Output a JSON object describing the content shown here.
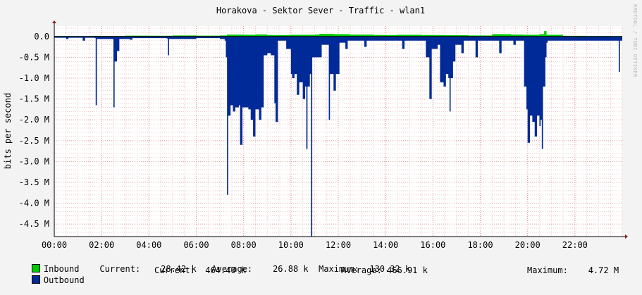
{
  "chart_data": {
    "type": "area",
    "title": "Horakova - Sektor Sever - Traffic - wlan1",
    "ylabel": "bits per second",
    "watermark": "RRDTOOL / TOBI OETIKER",
    "ylim": [
      -4800000,
      250000
    ],
    "y_ticks": [
      0,
      -500000,
      -1000000,
      -1500000,
      -2000000,
      -2500000,
      -3000000,
      -3500000,
      -4000000,
      -4500000
    ],
    "y_tick_labels": [
      "0.0",
      "-0.5 M",
      "-1.0 M",
      "-1.5 M",
      "-2.0 M",
      "-2.5 M",
      "-3.0 M",
      "-3.5 M",
      "-4.0 M",
      "-4.5 M"
    ],
    "xlim": [
      "00:00",
      "24:00"
    ],
    "x_ticks": [
      "00:00",
      "02:00",
      "04:00",
      "06:00",
      "08:00",
      "10:00",
      "12:00",
      "14:00",
      "16:00",
      "18:00",
      "20:00",
      "22:00"
    ],
    "grid": true,
    "series": [
      {
        "name": "Inbound",
        "color": "#00cc00",
        "values": [
          [
            0.0,
            10000
          ],
          [
            0.8,
            8000
          ],
          [
            1.5,
            15000
          ],
          [
            2.0,
            12000
          ],
          [
            3.0,
            20000
          ],
          [
            4.0,
            18000
          ],
          [
            5.0,
            25000
          ],
          [
            6.0,
            20000
          ],
          [
            7.0,
            25000
          ],
          [
            7.3,
            45000
          ],
          [
            8.0,
            40000
          ],
          [
            8.5,
            50000
          ],
          [
            9.0,
            35000
          ],
          [
            10.0,
            40000
          ],
          [
            11.0,
            45000
          ],
          [
            11.2,
            65000
          ],
          [
            11.8,
            55000
          ],
          [
            12.5,
            45000
          ],
          [
            13.5,
            35000
          ],
          [
            14.5,
            40000
          ],
          [
            15.5,
            35000
          ],
          [
            16.5,
            30000
          ],
          [
            17.5,
            25000
          ],
          [
            18.5,
            55000
          ],
          [
            19.3,
            45000
          ],
          [
            19.8,
            40000
          ],
          [
            20.5,
            55000
          ],
          [
            20.7,
            130000
          ],
          [
            20.8,
            40000
          ],
          [
            21.5,
            15000
          ],
          [
            22.5,
            10000
          ],
          [
            23.5,
            8000
          ],
          [
            24.0,
            8000
          ]
        ]
      },
      {
        "name": "Outbound",
        "color": "#002a97",
        "values": [
          [
            0.0,
            -30000
          ],
          [
            0.45,
            -30000
          ],
          [
            0.5,
            -60000
          ],
          [
            0.6,
            -30000
          ],
          [
            1.1,
            -30000
          ],
          [
            1.2,
            -100000
          ],
          [
            1.3,
            -30000
          ],
          [
            1.7,
            -40000
          ],
          [
            1.75,
            -1650000
          ],
          [
            1.8,
            -60000
          ],
          [
            2.4,
            -60000
          ],
          [
            2.5,
            -1700000
          ],
          [
            2.55,
            -600000
          ],
          [
            2.65,
            -350000
          ],
          [
            2.75,
            -60000
          ],
          [
            3.0,
            -60000
          ],
          [
            3.2,
            -80000
          ],
          [
            3.3,
            -40000
          ],
          [
            4.75,
            -50000
          ],
          [
            4.8,
            -450000
          ],
          [
            4.85,
            -60000
          ],
          [
            6.0,
            -40000
          ],
          [
            7.0,
            -60000
          ],
          [
            7.2,
            -100000
          ],
          [
            7.25,
            -500000
          ],
          [
            7.3,
            -3800000
          ],
          [
            7.35,
            -1900000
          ],
          [
            7.45,
            -1650000
          ],
          [
            7.55,
            -1800000
          ],
          [
            7.65,
            -1700000
          ],
          [
            7.8,
            -1650000
          ],
          [
            7.85,
            -2600000
          ],
          [
            7.95,
            -1700000
          ],
          [
            8.2,
            -1750000
          ],
          [
            8.3,
            -2000000
          ],
          [
            8.4,
            -2400000
          ],
          [
            8.5,
            -1750000
          ],
          [
            8.65,
            -2000000
          ],
          [
            8.75,
            -1700000
          ],
          [
            8.85,
            -450000
          ],
          [
            9.0,
            -400000
          ],
          [
            9.15,
            -450000
          ],
          [
            9.3,
            -1600000
          ],
          [
            9.35,
            -2050000
          ],
          [
            9.45,
            -100000
          ],
          [
            9.8,
            -300000
          ],
          [
            10.0,
            -900000
          ],
          [
            10.05,
            -1000000
          ],
          [
            10.15,
            -900000
          ],
          [
            10.25,
            -1400000
          ],
          [
            10.35,
            -1100000
          ],
          [
            10.5,
            -1500000
          ],
          [
            10.6,
            -1200000
          ],
          [
            10.65,
            -2700000
          ],
          [
            10.7,
            -1200000
          ],
          [
            10.8,
            -900000
          ],
          [
            10.85,
            -4800000
          ],
          [
            10.9,
            -500000
          ],
          [
            11.3,
            -200000
          ],
          [
            11.6,
            -2000000
          ],
          [
            11.65,
            -900000
          ],
          [
            11.75,
            -900000
          ],
          [
            11.8,
            -1300000
          ],
          [
            11.9,
            -900000
          ],
          [
            12.0,
            -900000
          ],
          [
            12.05,
            -150000
          ],
          [
            12.3,
            -300000
          ],
          [
            12.4,
            -100000
          ],
          [
            13.0,
            -100000
          ],
          [
            13.1,
            -250000
          ],
          [
            13.2,
            -100000
          ],
          [
            14.6,
            -100000
          ],
          [
            14.7,
            -300000
          ],
          [
            14.8,
            -100000
          ],
          [
            15.6,
            -100000
          ],
          [
            15.7,
            -500000
          ],
          [
            15.85,
            -1500000
          ],
          [
            15.95,
            -300000
          ],
          [
            16.2,
            -200000
          ],
          [
            16.3,
            -1100000
          ],
          [
            16.45,
            -1200000
          ],
          [
            16.55,
            -900000
          ],
          [
            16.65,
            -1000000
          ],
          [
            16.7,
            -1800000
          ],
          [
            16.75,
            -1000000
          ],
          [
            16.85,
            -600000
          ],
          [
            16.95,
            -200000
          ],
          [
            17.2,
            -400000
          ],
          [
            17.3,
            -100000
          ],
          [
            17.7,
            -100000
          ],
          [
            17.8,
            -500000
          ],
          [
            17.9,
            -100000
          ],
          [
            18.7,
            -100000
          ],
          [
            18.8,
            -400000
          ],
          [
            18.9,
            -100000
          ],
          [
            19.3,
            -100000
          ],
          [
            19.4,
            -200000
          ],
          [
            19.5,
            -100000
          ],
          [
            19.7,
            -100000
          ],
          [
            19.85,
            -1200000
          ],
          [
            19.95,
            -1750000
          ],
          [
            20.0,
            -2550000
          ],
          [
            20.1,
            -1900000
          ],
          [
            20.2,
            -2050000
          ],
          [
            20.3,
            -2400000
          ],
          [
            20.4,
            -1900000
          ],
          [
            20.5,
            -2150000
          ],
          [
            20.55,
            -2000000
          ],
          [
            20.6,
            -2700000
          ],
          [
            20.65,
            -1200000
          ],
          [
            20.75,
            -500000
          ],
          [
            20.8,
            -150000
          ],
          [
            20.85,
            -100000
          ],
          [
            23.8,
            -100000
          ],
          [
            23.85,
            -850000
          ],
          [
            23.9,
            -100000
          ],
          [
            24.0,
            -450000
          ]
        ]
      }
    ]
  },
  "legend": {
    "inbound": {
      "label": "Inbound",
      "current_label": "Current:",
      "current": "28.42 k",
      "average_label": "Average:",
      "average": "26.88 k",
      "maximum_label": "Maximum:",
      "maximum": "130.32 k",
      "color": "#00cc00"
    },
    "outbound": {
      "label": "Outbound",
      "current_label": "Current:",
      "current": "464.40 k",
      "average_label": "Average:",
      "average": "466.91 k",
      "maximum_label": "Maximum:",
      "maximum": "4.72 M",
      "color": "#002a97"
    }
  }
}
